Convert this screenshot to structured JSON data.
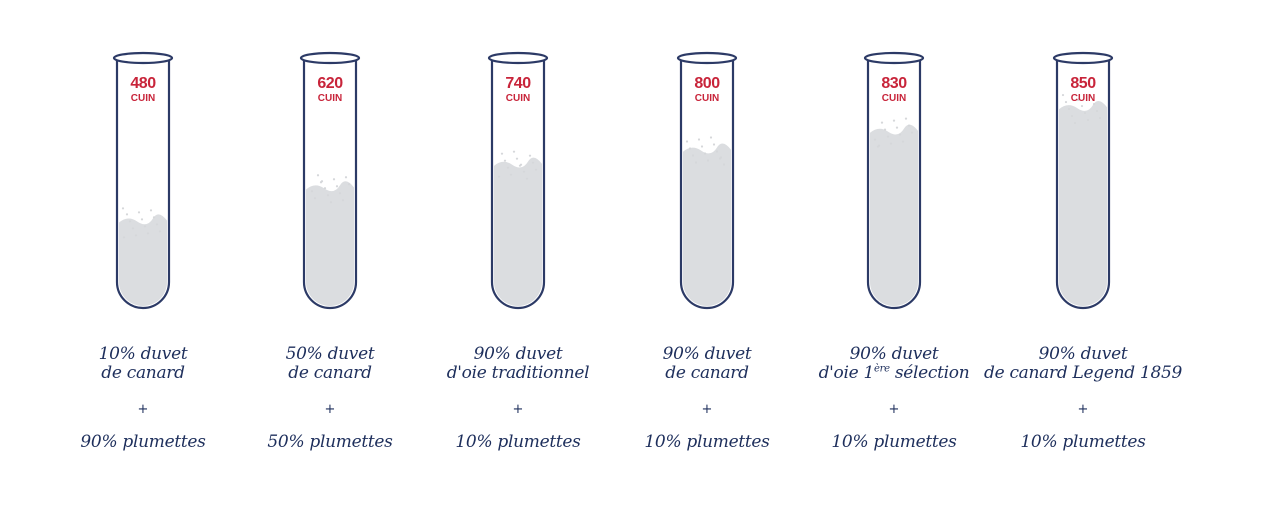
{
  "colors": {
    "outline": "#2c3a66",
    "fill": "#d5d7da",
    "accent": "#c8243a",
    "text": "#1e2f5c"
  },
  "tubes": [
    {
      "value": "480",
      "unit": "CUIN",
      "fill_level": 0.38,
      "line1": "10% duvet",
      "line2": "de canard",
      "line2_sup": "",
      "line2_rest": "",
      "plus": "+",
      "plumettes": "90% plumettes"
    },
    {
      "value": "620",
      "unit": "CUIN",
      "fill_level": 0.52,
      "line1": "50% duvet",
      "line2": "de canard",
      "line2_sup": "",
      "line2_rest": "",
      "plus": "+",
      "plumettes": "50% plumettes"
    },
    {
      "value": "740",
      "unit": "CUIN",
      "fill_level": 0.62,
      "line1": "90% duvet",
      "line2": "d'oie traditionnel",
      "line2_sup": "",
      "line2_rest": "",
      "plus": "+",
      "plumettes": "10% plumettes"
    },
    {
      "value": "800",
      "unit": "CUIN",
      "fill_level": 0.68,
      "line1": "90% duvet",
      "line2": "de canard",
      "line2_sup": "",
      "line2_rest": "",
      "plus": "+",
      "plumettes": "10% plumettes"
    },
    {
      "value": "830",
      "unit": "CUIN",
      "fill_level": 0.76,
      "line1": "90% duvet",
      "line2": "d'oie 1",
      "line2_sup": "ère",
      "line2_rest": " sélection",
      "plus": "+",
      "plumettes": "10% plumettes"
    },
    {
      "value": "850",
      "unit": "CUIN",
      "fill_level": 0.86,
      "line1": "90% duvet",
      "line2": "de canard Legend 1859",
      "line2_sup": "",
      "line2_rest": "",
      "plus": "+",
      "plumettes": "10% plumettes"
    }
  ]
}
